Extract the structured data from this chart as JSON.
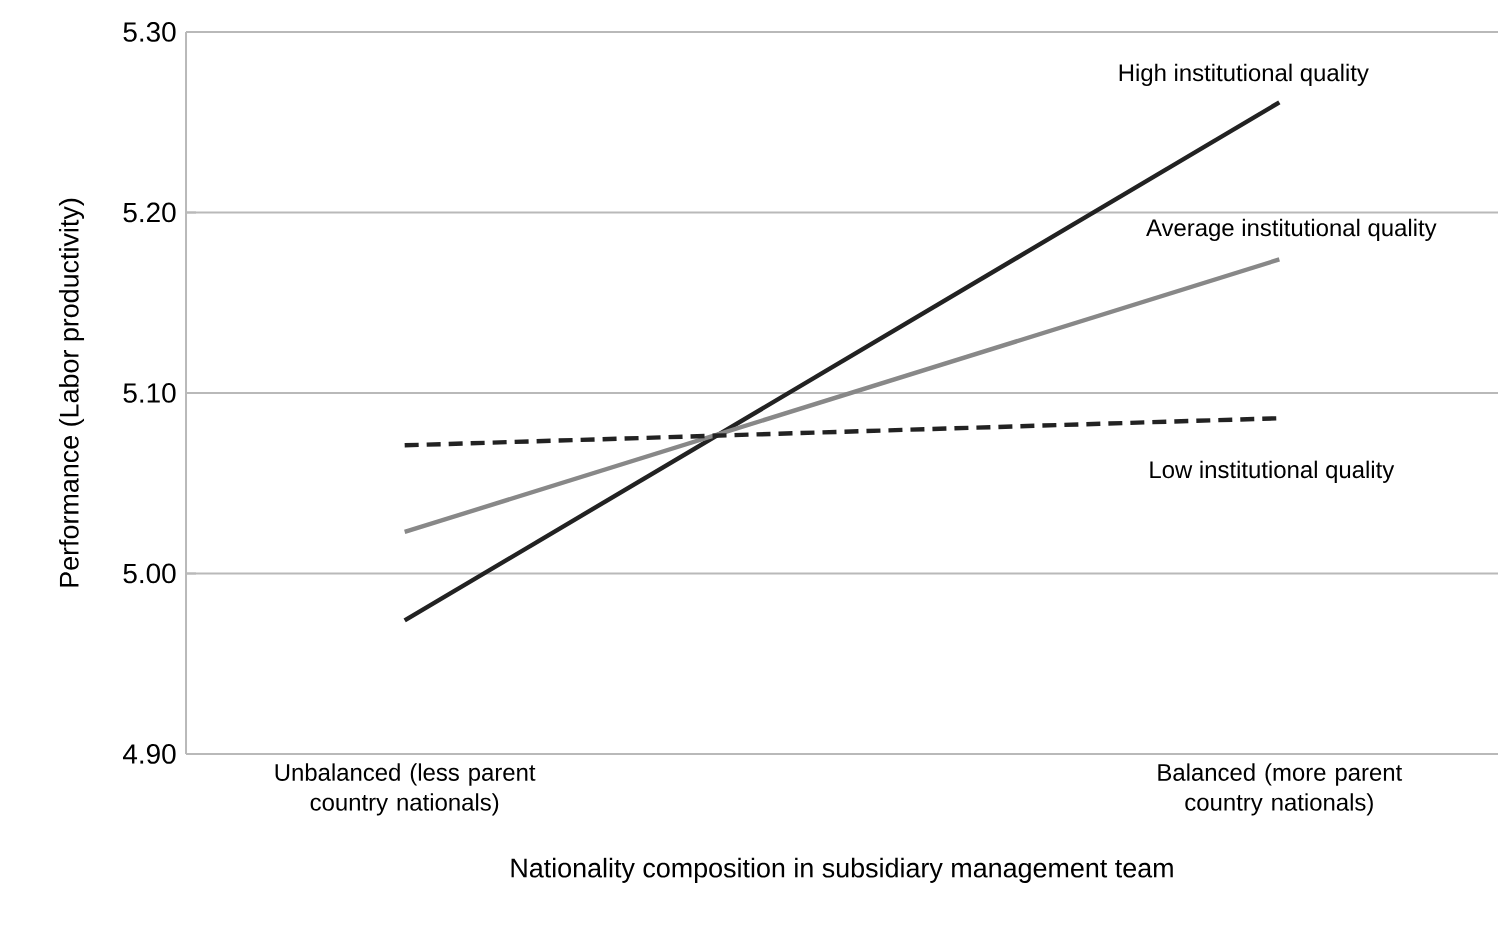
{
  "chart_data": {
    "type": "line",
    "xlabel": "Nationality composition in subsidiary management team",
    "ylabel": "Performance (Labor productivity)",
    "categories": [
      "Unbalanced (less parent country nationals)",
      "Balanced (more parent country nationals)"
    ],
    "ylim": [
      4.9,
      5.3
    ],
    "yticks": [
      {
        "value": 4.9,
        "label": "4.90"
      },
      {
        "value": 5.0,
        "label": "5.00"
      },
      {
        "value": 5.1,
        "label": "5.10"
      },
      {
        "value": 5.2,
        "label": "5.20"
      },
      {
        "value": 5.3,
        "label": "5.30"
      }
    ],
    "grid": "y",
    "series": [
      {
        "name": "High institutional quality",
        "color": "#222222",
        "line_style": "solid",
        "values": [
          4.974,
          5.261
        ]
      },
      {
        "name": "Average institutional quality",
        "color": "#888888",
        "line_style": "solid",
        "values": [
          5.023,
          5.174
        ]
      },
      {
        "name": "Low institutional quality",
        "color": "#222222",
        "line_style": "dashed",
        "values": [
          5.071,
          5.086
        ]
      }
    ]
  }
}
